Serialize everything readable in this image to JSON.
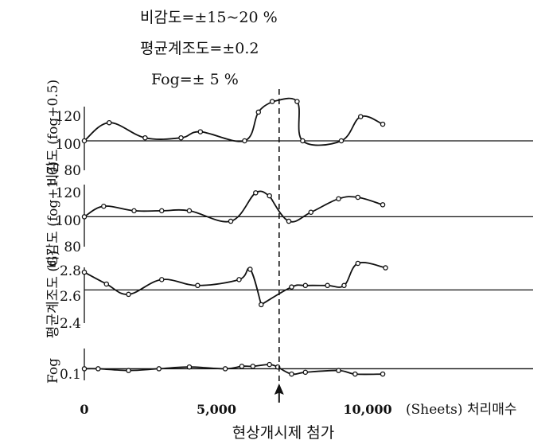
{
  "header": {
    "lines": [
      "비감도=±15~20 %",
      "평균계조도=±0.2",
      "Fog=± 5 %"
    ]
  },
  "colors": {
    "ink": "#111111",
    "background": "#ffffff"
  },
  "chart_data": {
    "type": "line",
    "x_axis": {
      "ticks": [
        "0",
        "5,000",
        "10,000"
      ],
      "unit_label": "(Sheets) 처리매수",
      "range": [
        0,
        11000
      ]
    },
    "event": {
      "x": 7050,
      "label": "현상개시제 첨가"
    },
    "panels": [
      {
        "name": "sens-fog05",
        "ylabel": "비감도 (fog+0.5)",
        "yticks": [
          "120",
          "100",
          "80"
        ],
        "ylim": [
          80,
          130
        ],
        "reference": 100,
        "x": [
          0,
          900,
          2200,
          3500,
          4200,
          5800,
          6300,
          6800,
          7700,
          7900,
          9300,
          10000,
          10800
        ],
        "y": [
          100,
          112,
          102,
          102,
          106,
          100,
          119,
          126,
          126,
          100,
          100,
          116,
          111
        ]
      },
      {
        "name": "sens-fog10",
        "ylabel": "비감도 (fog+1.0)",
        "yticks": [
          "120",
          "100",
          "80"
        ],
        "ylim": [
          80,
          130
        ],
        "reference": 100,
        "x": [
          0,
          700,
          1800,
          2800,
          3800,
          5300,
          6200,
          6700,
          7400,
          8200,
          9200,
          9900,
          10800
        ],
        "y": [
          100,
          107,
          104,
          104,
          104,
          97,
          116,
          114,
          97,
          103,
          112,
          113,
          108
        ]
      },
      {
        "name": "avg-gradient",
        "ylabel": "평균계조도 (G)",
        "yticks": [
          "2.8",
          "2.6",
          "2.4"
        ],
        "ylim": [
          2.3,
          2.85
        ],
        "reference": 2.6,
        "x": [
          0,
          800,
          1600,
          2800,
          4100,
          5600,
          6000,
          6400,
          7500,
          8000,
          8800,
          9400,
          9900,
          10900
        ],
        "y": [
          2.72,
          2.64,
          2.57,
          2.67,
          2.63,
          2.67,
          2.74,
          2.5,
          2.62,
          2.63,
          2.63,
          2.63,
          2.78,
          2.75
        ]
      },
      {
        "name": "fog",
        "ylabel": "Fog",
        "yticks": [
          "0.1"
        ],
        "ylim": [
          0.04,
          0.18
        ],
        "reference": 0.1,
        "x": [
          0,
          500,
          1600,
          2700,
          3800,
          5100,
          5700,
          6100,
          6700,
          7000,
          7500,
          8000,
          9200,
          9800,
          10800
        ],
        "y": [
          0.1,
          0.1,
          0.095,
          0.1,
          0.105,
          0.1,
          0.107,
          0.107,
          0.112,
          0.105,
          0.085,
          0.09,
          0.095,
          0.085,
          0.085
        ]
      }
    ]
  }
}
